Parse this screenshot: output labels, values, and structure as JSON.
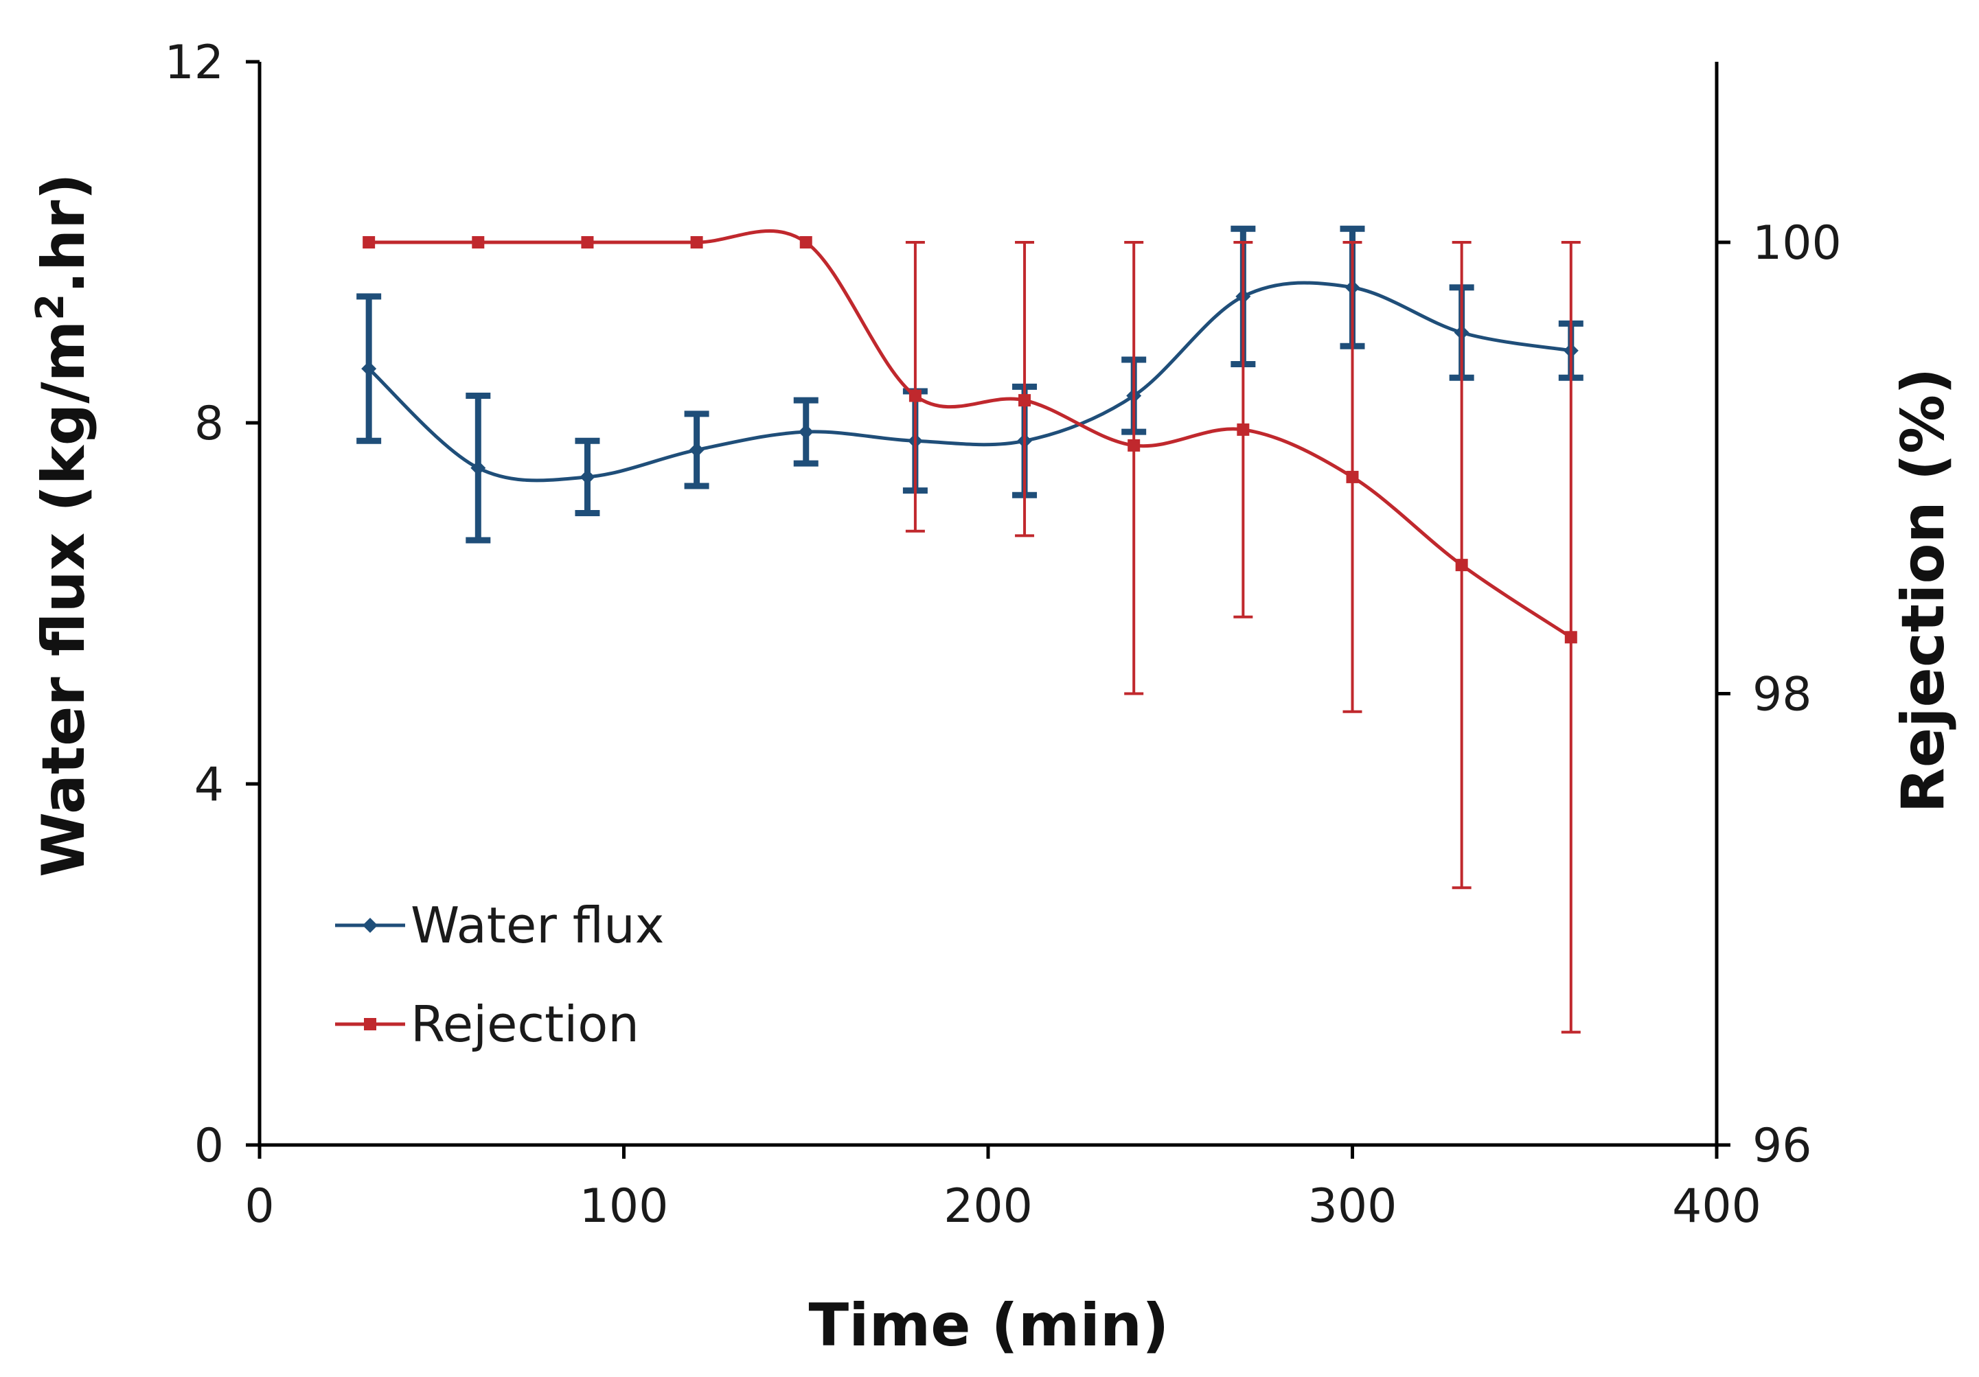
{
  "chart_data": {
    "type": "line",
    "xlabel": "Time (min)",
    "ylabel_left": {
      "prefix": "Water flux (kg/m",
      "sup": "2",
      "suffix": ".hr)"
    },
    "ylabel_right": "Rejection (%)",
    "xlim": [
      0,
      400
    ],
    "ylim_left": [
      0,
      12
    ],
    "ylim_right": [
      96,
      100.8
    ],
    "x_ticks": [
      0,
      100,
      200,
      300,
      400
    ],
    "y_left_ticks": [
      0,
      4,
      8,
      12
    ],
    "y_right_ticks": [
      96,
      98,
      100
    ],
    "grid": false,
    "legend_position": "bottom-left",
    "x": [
      30,
      60,
      90,
      120,
      150,
      180,
      210,
      240,
      270,
      300,
      330,
      360
    ],
    "series": [
      {
        "name": "Water flux",
        "axis": "left",
        "color": "#1f4e79",
        "marker": "diamond",
        "values": [
          8.6,
          7.5,
          7.4,
          7.7,
          7.9,
          7.8,
          7.8,
          8.3,
          9.4,
          9.5,
          9.0,
          8.8
        ],
        "errors": [
          0.8,
          0.8,
          0.4,
          0.4,
          0.35,
          0.55,
          0.6,
          0.4,
          0.75,
          0.65,
          0.5,
          0.3
        ]
      },
      {
        "name": "Rejection",
        "axis": "right",
        "color": "#c0282d",
        "marker": "square",
        "values": [
          100,
          100,
          100,
          100,
          100,
          99.32,
          99.3,
          99.1,
          99.17,
          98.96,
          98.57,
          98.25
        ],
        "errors": [
          0,
          0,
          0,
          0,
          0,
          0.68,
          0.7,
          0.9,
          0.83,
          1.04,
          1.43,
          1.75
        ],
        "errors_minus": [
          0,
          0,
          0,
          0,
          0,
          0.6,
          0.6,
          1.1,
          0.83,
          1.04,
          1.43,
          1.75
        ]
      }
    ]
  }
}
